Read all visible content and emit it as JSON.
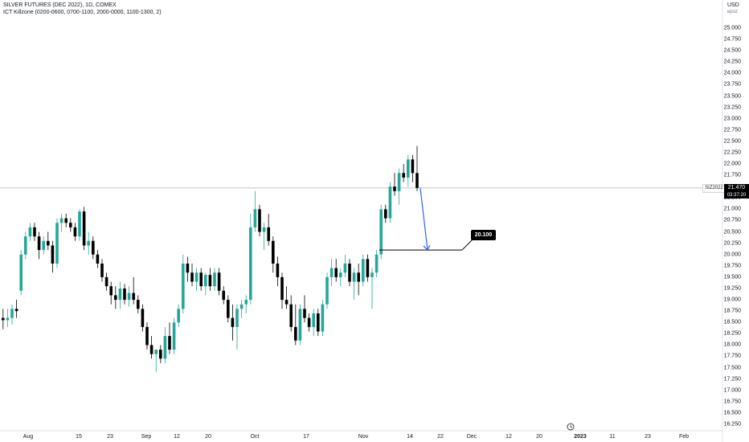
{
  "header": {
    "title": "SILVER FUTURES (DEC 2022), 1D, COMEX",
    "indicator": "ICT Killzone (0200-0600, 0700-1100, 2000-0000, 1100-1300, 2)"
  },
  "price_axis": {
    "currency": "USD",
    "currency_sub": "ʁpoz",
    "ticks": [
      "25.000",
      "24.750",
      "24.500",
      "24.250",
      "24.000",
      "23.750",
      "23.500",
      "23.250",
      "23.000",
      "22.750",
      "22.500",
      "22.250",
      "22.000",
      "21.750",
      "21.250",
      "21.000",
      "20.750",
      "20.500",
      "20.250",
      "20.000",
      "19.750",
      "19.500",
      "19.250",
      "19.000",
      "18.750",
      "18.500",
      "18.250",
      "18.000",
      "17.750",
      "17.500",
      "17.250",
      "17.000",
      "16.750",
      "16.500",
      "16.250"
    ]
  },
  "time_axis": {
    "ticks": [
      "Aug",
      "15",
      "23",
      "Sep",
      "12",
      "20",
      "Oct",
      "17",
      "Nov",
      "14",
      "22",
      "Dec",
      "12",
      "20",
      "2023",
      "11",
      "23",
      "Feb"
    ]
  },
  "last_price": {
    "symbol": "SIZ2022",
    "value": "21.470",
    "countdown": "03:37:20"
  },
  "annotation": {
    "label": "20.100"
  },
  "colors": {
    "up": "#26a69a",
    "down": "#000000",
    "arrow": "#2962ff",
    "line": "#000000"
  },
  "chart_data": {
    "type": "candlestick",
    "title": "SILVER FUTURES (DEC 2022), 1D, COMEX",
    "ylabel": "USD",
    "ylim": [
      16.0,
      25.3
    ],
    "candles": [
      {
        "o": 18.6,
        "h": 18.8,
        "l": 18.35,
        "c": 18.55
      },
      {
        "o": 18.55,
        "h": 18.8,
        "l": 18.4,
        "c": 18.6
      },
      {
        "o": 18.6,
        "h": 18.9,
        "l": 18.45,
        "c": 18.8
      },
      {
        "o": 18.8,
        "h": 19.0,
        "l": 18.6,
        "c": 18.75
      },
      {
        "o": 19.2,
        "h": 20.1,
        "l": 19.1,
        "c": 20.0
      },
      {
        "o": 20.0,
        "h": 20.5,
        "l": 19.9,
        "c": 20.4
      },
      {
        "o": 20.4,
        "h": 20.7,
        "l": 20.3,
        "c": 20.6
      },
      {
        "o": 20.6,
        "h": 20.7,
        "l": 20.3,
        "c": 20.4
      },
      {
        "o": 20.4,
        "h": 20.5,
        "l": 19.9,
        "c": 20.1
      },
      {
        "o": 20.1,
        "h": 20.4,
        "l": 20.0,
        "c": 20.3
      },
      {
        "o": 20.3,
        "h": 20.5,
        "l": 20.1,
        "c": 20.2
      },
      {
        "o": 20.2,
        "h": 20.3,
        "l": 19.6,
        "c": 19.8
      },
      {
        "o": 19.8,
        "h": 20.8,
        "l": 19.7,
        "c": 20.7
      },
      {
        "o": 20.7,
        "h": 20.9,
        "l": 20.5,
        "c": 20.8
      },
      {
        "o": 20.8,
        "h": 20.9,
        "l": 20.6,
        "c": 20.7
      },
      {
        "o": 20.7,
        "h": 20.8,
        "l": 20.5,
        "c": 20.6
      },
      {
        "o": 20.6,
        "h": 20.7,
        "l": 20.3,
        "c": 20.4
      },
      {
        "o": 20.4,
        "h": 21.0,
        "l": 20.3,
        "c": 20.95
      },
      {
        "o": 20.95,
        "h": 21.05,
        "l": 20.1,
        "c": 20.2
      },
      {
        "o": 20.2,
        "h": 20.5,
        "l": 20.0,
        "c": 20.3
      },
      {
        "o": 20.3,
        "h": 20.4,
        "l": 19.9,
        "c": 20.0
      },
      {
        "o": 20.0,
        "h": 20.1,
        "l": 19.7,
        "c": 19.8
      },
      {
        "o": 19.8,
        "h": 19.9,
        "l": 19.4,
        "c": 19.5
      },
      {
        "o": 19.5,
        "h": 19.6,
        "l": 19.2,
        "c": 19.3
      },
      {
        "o": 19.3,
        "h": 19.4,
        "l": 18.9,
        "c": 19.1
      },
      {
        "o": 19.1,
        "h": 19.3,
        "l": 18.8,
        "c": 19.0
      },
      {
        "o": 19.0,
        "h": 19.4,
        "l": 18.8,
        "c": 19.25
      },
      {
        "o": 19.25,
        "h": 19.35,
        "l": 18.9,
        "c": 19.0
      },
      {
        "o": 19.0,
        "h": 19.3,
        "l": 18.85,
        "c": 19.15
      },
      {
        "o": 19.15,
        "h": 19.5,
        "l": 18.9,
        "c": 19.0
      },
      {
        "o": 19.0,
        "h": 19.1,
        "l": 18.7,
        "c": 18.8
      },
      {
        "o": 18.8,
        "h": 18.9,
        "l": 18.3,
        "c": 18.4
      },
      {
        "o": 18.4,
        "h": 18.5,
        "l": 17.9,
        "c": 18.0
      },
      {
        "o": 18.0,
        "h": 18.2,
        "l": 17.7,
        "c": 17.8
      },
      {
        "o": 17.8,
        "h": 17.9,
        "l": 17.4,
        "c": 17.9
      },
      {
        "o": 17.9,
        "h": 18.0,
        "l": 17.6,
        "c": 17.7
      },
      {
        "o": 17.7,
        "h": 18.4,
        "l": 17.6,
        "c": 18.2
      },
      {
        "o": 18.2,
        "h": 18.5,
        "l": 17.8,
        "c": 17.9
      },
      {
        "o": 17.9,
        "h": 18.6,
        "l": 17.8,
        "c": 18.5
      },
      {
        "o": 18.5,
        "h": 18.9,
        "l": 18.4,
        "c": 18.8
      },
      {
        "o": 18.8,
        "h": 20.0,
        "l": 18.7,
        "c": 19.8
      },
      {
        "o": 19.8,
        "h": 19.95,
        "l": 19.4,
        "c": 19.6
      },
      {
        "o": 19.6,
        "h": 19.8,
        "l": 19.3,
        "c": 19.4
      },
      {
        "o": 19.4,
        "h": 19.7,
        "l": 19.2,
        "c": 19.6
      },
      {
        "o": 19.6,
        "h": 19.7,
        "l": 19.2,
        "c": 19.3
      },
      {
        "o": 19.3,
        "h": 19.6,
        "l": 19.1,
        "c": 19.55
      },
      {
        "o": 19.55,
        "h": 19.7,
        "l": 19.2,
        "c": 19.3
      },
      {
        "o": 19.3,
        "h": 19.7,
        "l": 19.2,
        "c": 19.6
      },
      {
        "o": 19.6,
        "h": 19.7,
        "l": 19.1,
        "c": 19.2
      },
      {
        "o": 19.2,
        "h": 19.3,
        "l": 18.9,
        "c": 19.0
      },
      {
        "o": 19.0,
        "h": 19.1,
        "l": 18.5,
        "c": 18.6
      },
      {
        "o": 18.6,
        "h": 18.9,
        "l": 18.1,
        "c": 18.4
      },
      {
        "o": 18.4,
        "h": 18.9,
        "l": 17.9,
        "c": 18.8
      },
      {
        "o": 18.8,
        "h": 19.0,
        "l": 18.6,
        "c": 18.9
      },
      {
        "o": 18.9,
        "h": 19.1,
        "l": 18.7,
        "c": 19.0
      },
      {
        "o": 19.0,
        "h": 20.9,
        "l": 18.9,
        "c": 20.6
      },
      {
        "o": 20.6,
        "h": 21.4,
        "l": 20.5,
        "c": 21.0
      },
      {
        "o": 21.0,
        "h": 21.1,
        "l": 20.4,
        "c": 20.5
      },
      {
        "o": 20.5,
        "h": 20.7,
        "l": 20.1,
        "c": 20.6
      },
      {
        "o": 20.6,
        "h": 20.9,
        "l": 20.2,
        "c": 20.3
      },
      {
        "o": 20.3,
        "h": 20.4,
        "l": 19.6,
        "c": 19.8
      },
      {
        "o": 19.8,
        "h": 19.95,
        "l": 19.3,
        "c": 19.5
      },
      {
        "o": 19.5,
        "h": 19.6,
        "l": 18.8,
        "c": 19.0
      },
      {
        "o": 19.0,
        "h": 19.3,
        "l": 18.8,
        "c": 18.9
      },
      {
        "o": 18.9,
        "h": 19.1,
        "l": 18.3,
        "c": 18.4
      },
      {
        "o": 18.4,
        "h": 18.9,
        "l": 18.0,
        "c": 18.1
      },
      {
        "o": 18.1,
        "h": 18.9,
        "l": 18.0,
        "c": 18.8
      },
      {
        "o": 18.8,
        "h": 19.1,
        "l": 18.5,
        "c": 18.6
      },
      {
        "o": 18.6,
        "h": 18.7,
        "l": 18.3,
        "c": 18.4
      },
      {
        "o": 18.4,
        "h": 18.8,
        "l": 18.2,
        "c": 18.7
      },
      {
        "o": 18.7,
        "h": 18.8,
        "l": 18.2,
        "c": 18.3
      },
      {
        "o": 18.3,
        "h": 19.0,
        "l": 18.2,
        "c": 18.9
      },
      {
        "o": 18.9,
        "h": 19.6,
        "l": 18.8,
        "c": 19.5
      },
      {
        "o": 19.5,
        "h": 19.9,
        "l": 19.3,
        "c": 19.7
      },
      {
        "o": 19.7,
        "h": 19.9,
        "l": 19.4,
        "c": 19.5
      },
      {
        "o": 19.5,
        "h": 19.7,
        "l": 19.3,
        "c": 19.6
      },
      {
        "o": 19.6,
        "h": 20.0,
        "l": 19.5,
        "c": 19.8
      },
      {
        "o": 19.8,
        "h": 19.9,
        "l": 19.3,
        "c": 19.4
      },
      {
        "o": 19.4,
        "h": 19.7,
        "l": 19.0,
        "c": 19.6
      },
      {
        "o": 19.6,
        "h": 19.8,
        "l": 19.1,
        "c": 19.4
      },
      {
        "o": 19.4,
        "h": 20.0,
        "l": 19.3,
        "c": 19.9
      },
      {
        "o": 19.9,
        "h": 20.0,
        "l": 19.4,
        "c": 19.5
      },
      {
        "o": 19.5,
        "h": 19.7,
        "l": 18.8,
        "c": 19.6
      },
      {
        "o": 19.6,
        "h": 20.1,
        "l": 19.5,
        "c": 20.0
      },
      {
        "o": 20.0,
        "h": 21.1,
        "l": 19.9,
        "c": 21.0
      },
      {
        "o": 21.0,
        "h": 21.1,
        "l": 20.7,
        "c": 20.8
      },
      {
        "o": 20.8,
        "h": 21.6,
        "l": 20.7,
        "c": 21.5
      },
      {
        "o": 21.5,
        "h": 21.8,
        "l": 21.3,
        "c": 21.4
      },
      {
        "o": 21.4,
        "h": 21.9,
        "l": 21.1,
        "c": 21.8
      },
      {
        "o": 21.8,
        "h": 22.0,
        "l": 21.6,
        "c": 21.7
      },
      {
        "o": 21.7,
        "h": 22.2,
        "l": 21.5,
        "c": 22.1
      },
      {
        "o": 22.1,
        "h": 22.2,
        "l": 21.6,
        "c": 21.8
      },
      {
        "o": 21.8,
        "h": 22.4,
        "l": 21.4,
        "c": 21.47
      }
    ],
    "horizontal_line": {
      "value": 20.1,
      "label": "20.100"
    },
    "arrow": {
      "from": 21.47,
      "to": 20.1
    },
    "last_price": 21.47
  }
}
